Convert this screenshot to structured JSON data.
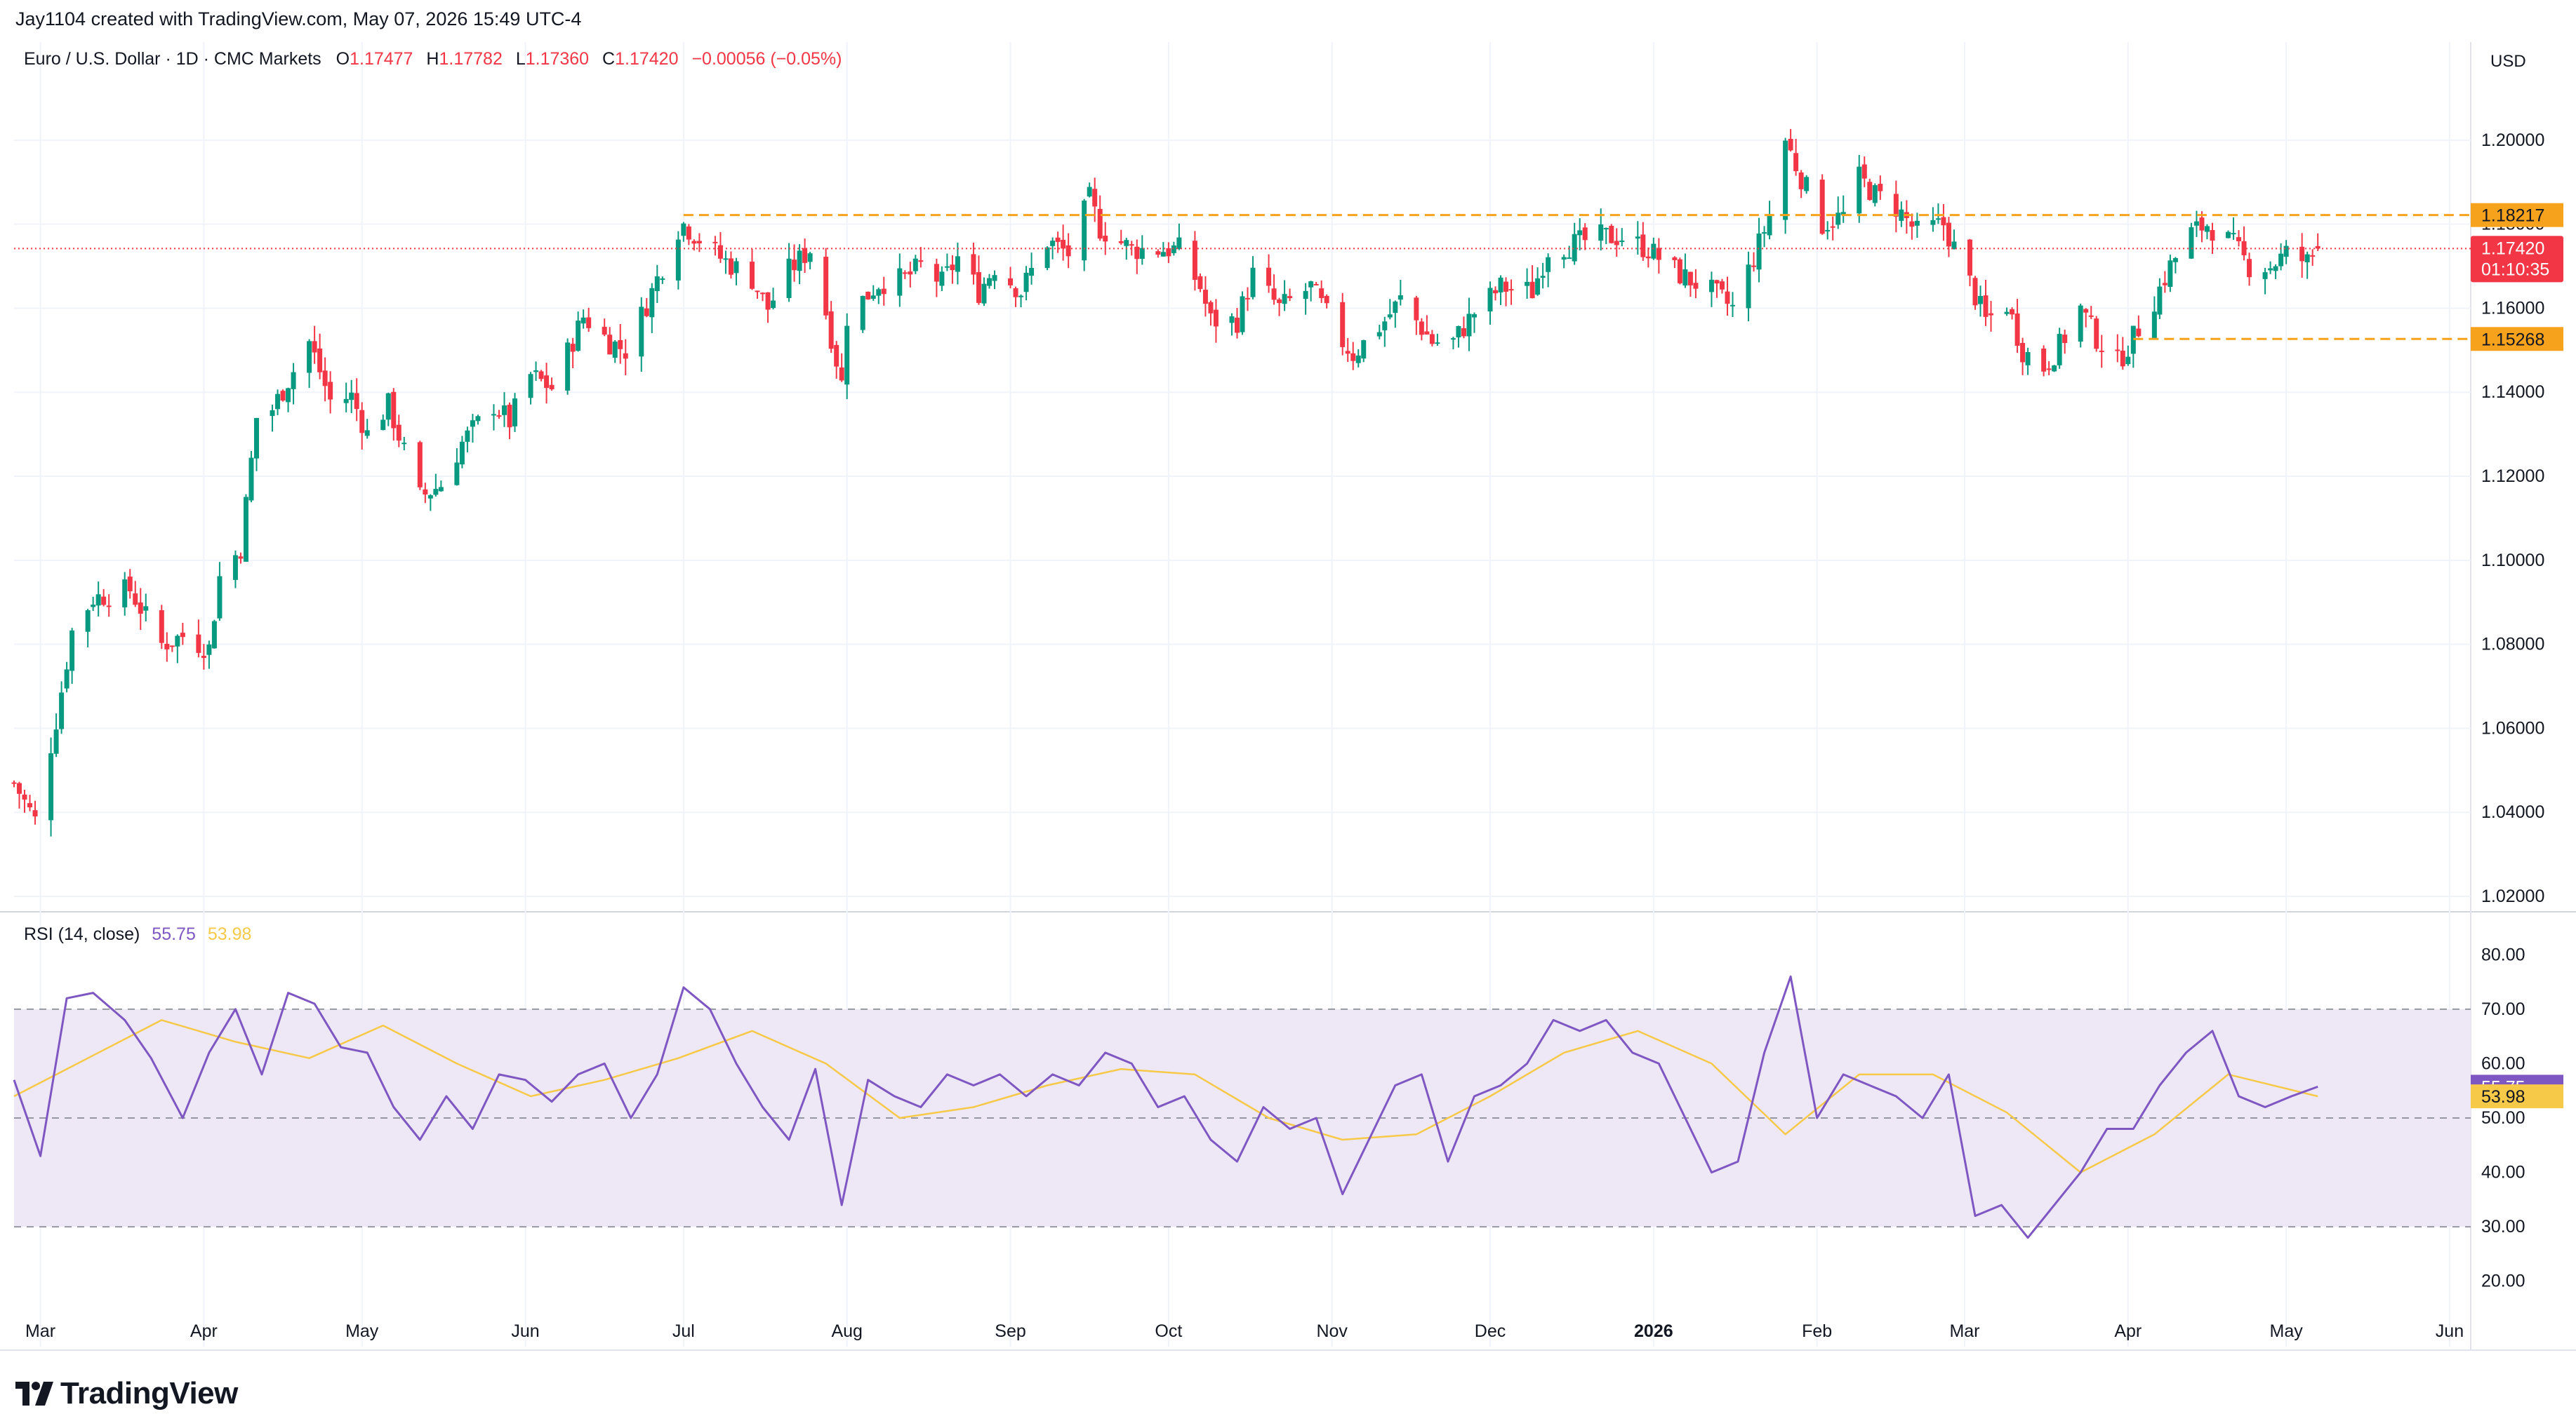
{
  "header": {
    "attribution": "Jay1104 created with TradingView.com, May 07, 2026 15:49 UTC-4"
  },
  "symbol": {
    "name": "Euro / U.S. Dollar · 1D · CMC Markets",
    "open_label": "O",
    "open": "1.17477",
    "high_label": "H",
    "high": "1.17782",
    "low_label": "L",
    "low": "1.17360",
    "close_label": "C",
    "close": "1.17420",
    "change": "−0.00056 (−0.05%)"
  },
  "currency": "USD",
  "price_tag": {
    "price": "1.17420",
    "countdown": "01:10:35"
  },
  "levels": [
    {
      "label": "1.18217",
      "value": 1.18217
    },
    {
      "label": "1.15268",
      "value": 1.15268
    }
  ],
  "rsi": {
    "title": "RSI (14, close)",
    "value": "55.75",
    "ma_value": "53.98"
  },
  "brand": {
    "name": "TradingView"
  },
  "colors": {
    "up": "#089981",
    "down": "#f23645",
    "level": "#f7a21c",
    "rsi": "#7e57c2",
    "rsi_ma": "#f7c948",
    "rsi_band": "#ede7f6",
    "price_tag": "#f23645"
  },
  "chart_data": [
    {
      "type": "candlestick",
      "title": "Euro / U.S. Dollar · 1D · CMC Markets",
      "y_axis_side": "right",
      "ylim": [
        1.018,
        1.215
      ],
      "y_ticks": [
        "1.02000",
        "1.04000",
        "1.06000",
        "1.08000",
        "1.10000",
        "1.12000",
        "1.14000",
        "1.16000",
        "1.18000",
        "1.20000"
      ],
      "x_ticks": [
        "Mar",
        "Apr",
        "May",
        "Jun",
        "Jul",
        "Aug",
        "Sep",
        "Oct",
        "Nov",
        "Dec",
        "2026",
        "Feb",
        "Mar",
        "Apr",
        "May",
        "Jun"
      ],
      "x_tick_dates": [
        "2025-03-01",
        "2025-04-01",
        "2025-05-01",
        "2025-06-01",
        "2025-07-01",
        "2025-08-01",
        "2025-09-01",
        "2025-10-01",
        "2025-11-01",
        "2025-12-01",
        "2026-01-01",
        "2026-02-01",
        "2026-03-01",
        "2026-04-01",
        "2026-05-01",
        "2026-06-01"
      ],
      "xlim": [
        "2025-02-24",
        "2026-06-05"
      ],
      "close_path": [
        [
          "2025-02-24",
          1.047
        ],
        [
          "2025-02-28",
          1.038
        ],
        [
          "2025-03-04",
          1.062
        ],
        [
          "2025-03-07",
          1.083
        ],
        [
          "2025-03-11",
          1.091
        ],
        [
          "2025-03-18",
          1.093
        ],
        [
          "2025-03-24",
          1.08
        ],
        [
          "2025-03-28",
          1.082
        ],
        [
          "2025-04-02",
          1.079
        ],
        [
          "2025-04-04",
          1.096
        ],
        [
          "2025-04-08",
          1.103
        ],
        [
          "2025-04-11",
          1.134
        ],
        [
          "2025-04-14",
          1.136
        ],
        [
          "2025-04-21",
          1.152
        ],
        [
          "2025-04-25",
          1.138
        ],
        [
          "2025-04-29",
          1.139
        ],
        [
          "2025-05-02",
          1.13
        ],
        [
          "2025-05-06",
          1.137
        ],
        [
          "2025-05-12",
          1.115
        ],
        [
          "2025-05-16",
          1.118
        ],
        [
          "2025-05-20",
          1.128
        ],
        [
          "2025-05-26",
          1.137
        ],
        [
          "2025-05-29",
          1.133
        ],
        [
          "2025-06-02",
          1.144
        ],
        [
          "2025-06-06",
          1.141
        ],
        [
          "2025-06-12",
          1.158
        ],
        [
          "2025-06-17",
          1.152
        ],
        [
          "2025-06-20",
          1.15
        ],
        [
          "2025-06-24",
          1.161
        ],
        [
          "2025-06-30",
          1.179
        ],
        [
          "2025-07-01",
          1.18
        ],
        [
          "2025-07-08",
          1.172
        ],
        [
          "2025-07-14",
          1.167
        ],
        [
          "2025-07-17",
          1.16
        ],
        [
          "2025-07-21",
          1.169
        ],
        [
          "2025-07-25",
          1.174
        ],
        [
          "2025-07-28",
          1.159
        ],
        [
          "2025-07-31",
          1.142
        ],
        [
          "2025-08-01",
          1.158
        ],
        [
          "2025-08-07",
          1.166
        ],
        [
          "2025-08-12",
          1.167
        ],
        [
          "2025-08-15",
          1.17
        ],
        [
          "2025-08-19",
          1.166
        ],
        [
          "2025-08-22",
          1.172
        ],
        [
          "2025-08-26",
          1.164
        ],
        [
          "2025-08-29",
          1.17
        ],
        [
          "2025-09-03",
          1.164
        ],
        [
          "2025-09-08",
          1.176
        ],
        [
          "2025-09-12",
          1.173
        ],
        [
          "2025-09-16",
          1.186
        ],
        [
          "2025-09-18",
          1.179
        ],
        [
          "2025-09-24",
          1.174
        ],
        [
          "2025-09-30",
          1.174
        ],
        [
          "2025-10-03",
          1.174
        ],
        [
          "2025-10-07",
          1.165
        ],
        [
          "2025-10-09",
          1.157
        ],
        [
          "2025-10-14",
          1.157
        ],
        [
          "2025-10-17",
          1.168
        ],
        [
          "2025-10-22",
          1.16
        ],
        [
          "2025-10-28",
          1.165
        ],
        [
          "2025-11-03",
          1.152
        ],
        [
          "2025-11-05",
          1.149
        ],
        [
          "2025-11-11",
          1.157
        ],
        [
          "2025-11-14",
          1.162
        ],
        [
          "2025-11-20",
          1.152
        ],
        [
          "2025-11-24",
          1.152
        ],
        [
          "2025-11-28",
          1.159
        ],
        [
          "2025-12-03",
          1.165
        ],
        [
          "2025-12-09",
          1.164
        ],
        [
          "2025-12-12",
          1.174
        ],
        [
          "2025-12-16",
          1.175
        ],
        [
          "2025-12-22",
          1.177
        ],
        [
          "2025-12-26",
          1.177
        ],
        [
          "2025-12-31",
          1.174
        ],
        [
          "2026-01-06",
          1.168
        ],
        [
          "2026-01-12",
          1.164
        ],
        [
          "2026-01-16",
          1.16
        ],
        [
          "2026-01-20",
          1.172
        ],
        [
          "2026-01-23",
          1.182
        ],
        [
          "2026-01-26",
          1.2
        ],
        [
          "2026-01-28",
          1.194
        ],
        [
          "2026-02-02",
          1.18
        ],
        [
          "2026-02-06",
          1.182
        ],
        [
          "2026-02-09",
          1.191
        ],
        [
          "2026-02-12",
          1.187
        ],
        [
          "2026-02-16",
          1.184
        ],
        [
          "2026-02-20",
          1.178
        ],
        [
          "2026-02-25",
          1.18
        ],
        [
          "2026-03-02",
          1.166
        ],
        [
          "2026-03-05",
          1.157
        ],
        [
          "2026-03-09",
          1.161
        ],
        [
          "2026-03-12",
          1.15
        ],
        [
          "2026-03-16",
          1.146
        ],
        [
          "2026-03-19",
          1.151
        ],
        [
          "2026-03-23",
          1.16
        ],
        [
          "2026-03-26",
          1.153
        ],
        [
          "2026-03-30",
          1.147
        ],
        [
          "2026-04-02",
          1.153
        ],
        [
          "2026-04-06",
          1.162
        ],
        [
          "2026-04-09",
          1.17
        ],
        [
          "2026-04-13",
          1.178
        ],
        [
          "2026-04-16",
          1.18
        ],
        [
          "2026-04-21",
          1.175
        ],
        [
          "2026-04-24",
          1.17
        ],
        [
          "2026-04-28",
          1.17
        ],
        [
          "2026-05-01",
          1.173
        ],
        [
          "2026-05-05",
          1.171
        ],
        [
          "2026-05-07",
          1.1742
        ]
      ],
      "last_bar": {
        "open": 1.17477,
        "high": 1.17782,
        "low": 1.1736,
        "close": 1.1742
      },
      "horizontal_levels": [
        1.18217,
        1.15268
      ],
      "level_ranges": [
        [
          "2025-07-01",
          "2026-05-07"
        ],
        [
          "2026-04-02",
          "2026-05-07"
        ]
      ]
    },
    {
      "type": "line",
      "title": "RSI (14, close)",
      "ylim": [
        17,
        83
      ],
      "y_ticks": [
        "20.00",
        "30.00",
        "40.00",
        "50.00",
        "60.00",
        "70.00",
        "80.00"
      ],
      "band": [
        30,
        70
      ],
      "midline": 50,
      "series": [
        {
          "name": "RSI",
          "x_dates": [
            "2025-02-24",
            "2025-03-01",
            "2025-03-06",
            "2025-03-11",
            "2025-03-17",
            "2025-03-22",
            "2025-03-28",
            "2025-04-02",
            "2025-04-07",
            "2025-04-12",
            "2025-04-17",
            "2025-04-22",
            "2025-04-27",
            "2025-05-02",
            "2025-05-07",
            "2025-05-12",
            "2025-05-17",
            "2025-05-22",
            "2025-05-27",
            "2025-06-01",
            "2025-06-06",
            "2025-06-11",
            "2025-06-16",
            "2025-06-21",
            "2025-06-26",
            "2025-07-01",
            "2025-07-06",
            "2025-07-11",
            "2025-07-16",
            "2025-07-21",
            "2025-07-26",
            "2025-07-31",
            "2025-08-05",
            "2025-08-10",
            "2025-08-15",
            "2025-08-20",
            "2025-08-25",
            "2025-08-30",
            "2025-09-04",
            "2025-09-09",
            "2025-09-14",
            "2025-09-19",
            "2025-09-24",
            "2025-09-29",
            "2025-10-04",
            "2025-10-09",
            "2025-10-14",
            "2025-10-19",
            "2025-10-24",
            "2025-10-29",
            "2025-11-03",
            "2025-11-08",
            "2025-11-13",
            "2025-11-18",
            "2025-11-23",
            "2025-11-28",
            "2025-12-03",
            "2025-12-08",
            "2025-12-13",
            "2025-12-18",
            "2025-12-23",
            "2025-12-28",
            "2026-01-02",
            "2026-01-07",
            "2026-01-12",
            "2026-01-17",
            "2026-01-22",
            "2026-01-27",
            "2026-02-01",
            "2026-02-06",
            "2026-02-11",
            "2026-02-16",
            "2026-02-21",
            "2026-02-26",
            "2026-03-03",
            "2026-03-08",
            "2026-03-13",
            "2026-03-18",
            "2026-03-23",
            "2026-03-28",
            "2026-04-02",
            "2026-04-07",
            "2026-04-12",
            "2026-04-17",
            "2026-04-22",
            "2026-04-27",
            "2026-05-02",
            "2026-05-07"
          ],
          "values": [
            57,
            43,
            72,
            73,
            68,
            61,
            50,
            62,
            70,
            58,
            73,
            71,
            63,
            62,
            52,
            46,
            54,
            48,
            58,
            57,
            53,
            58,
            60,
            50,
            58,
            74,
            70,
            60,
            52,
            46,
            59,
            34,
            57,
            54,
            52,
            58,
            56,
            58,
            54,
            58,
            56,
            62,
            60,
            52,
            54,
            46,
            42,
            52,
            48,
            50,
            36,
            46,
            56,
            58,
            42,
            54,
            56,
            60,
            68,
            66,
            68,
            62,
            60,
            50,
            40,
            42,
            62,
            76,
            50,
            58,
            56,
            54,
            50,
            58,
            32,
            34,
            28,
            34,
            40,
            48,
            48,
            56,
            62,
            66,
            54,
            52,
            54,
            55.75
          ]
        },
        {
          "name": "MA",
          "x_dates": [
            "2025-02-24",
            "2025-03-10",
            "2025-03-24",
            "2025-04-07",
            "2025-04-21",
            "2025-05-05",
            "2025-05-19",
            "2025-06-02",
            "2025-06-16",
            "2025-06-30",
            "2025-07-14",
            "2025-07-28",
            "2025-08-11",
            "2025-08-25",
            "2025-09-08",
            "2025-09-22",
            "2025-10-06",
            "2025-10-20",
            "2025-11-03",
            "2025-11-17",
            "2025-12-01",
            "2025-12-15",
            "2025-12-29",
            "2026-01-12",
            "2026-01-26",
            "2026-02-09",
            "2026-02-23",
            "2026-03-09",
            "2026-03-23",
            "2026-04-06",
            "2026-04-20",
            "2026-05-07"
          ],
          "values": [
            54,
            61,
            68,
            64,
            61,
            67,
            60,
            54,
            57,
            61,
            66,
            60,
            50,
            52,
            56,
            59,
            58,
            50,
            46,
            47,
            54,
            62,
            66,
            60,
            47,
            58,
            58,
            51,
            40,
            47,
            58,
            53.98
          ]
        }
      ]
    }
  ]
}
